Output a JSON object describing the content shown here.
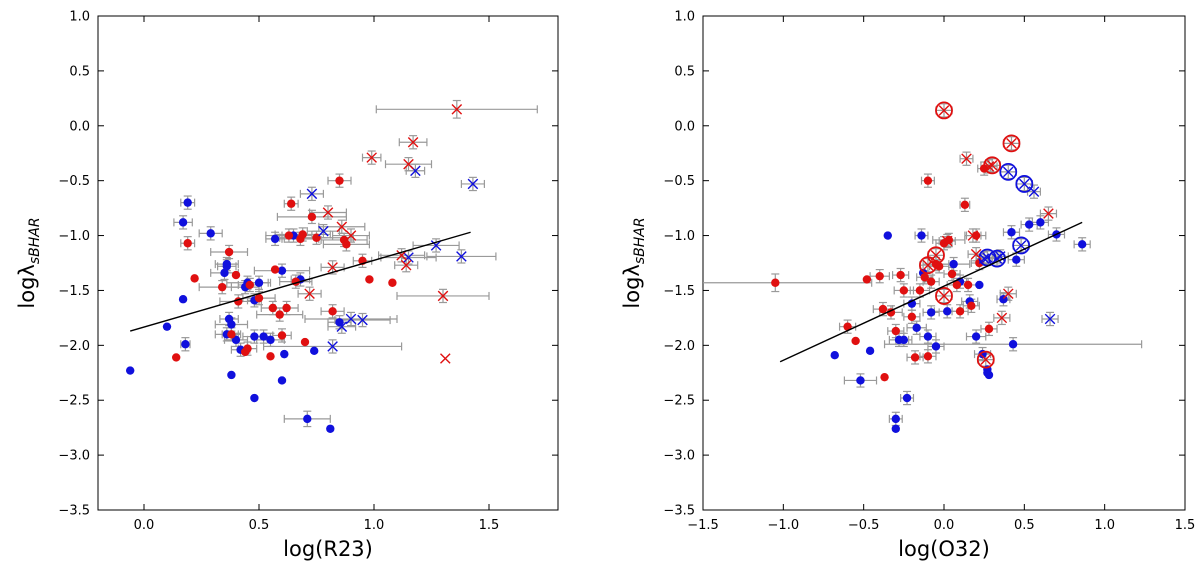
{
  "colors": {
    "blue": "#1010dd",
    "red": "#e01010",
    "errorbar": "#9a9a9a",
    "fit": "#000000"
  },
  "chart_data": [
    {
      "type": "scatter",
      "title": "",
      "xlabel": "log(R23)",
      "ylabel": "logλ",
      "ylabel_sub": "sBHAR",
      "xlim": [
        -0.2,
        1.8
      ],
      "ylim": [
        -3.5,
        1.0
      ],
      "xticks": [
        0.0,
        0.5,
        1.0,
        1.5
      ],
      "xtick_labels": [
        "0.0",
        "0.5",
        "1.0",
        "1.5"
      ],
      "yticks": [
        -3.5,
        -3.0,
        -2.5,
        -2.0,
        -1.5,
        -1.0,
        -0.5,
        0.0,
        0.5,
        1.0
      ],
      "ytick_labels": [
        "−3.5",
        "−3.0",
        "−2.5",
        "−2.0",
        "−1.5",
        "−1.0",
        "−0.5",
        "0.0",
        "0.5",
        "1.0"
      ],
      "fit_line": {
        "x": [
          -0.06,
          1.42
        ],
        "y": [
          -1.87,
          -0.97
        ]
      },
      "series": [
        {
          "name": "blue points",
          "color": "blue",
          "marker": "circle",
          "x": [
            -0.06,
            0.1,
            0.17,
            0.18,
            0.19,
            0.17,
            0.29,
            0.35,
            0.36,
            0.37,
            0.38,
            0.36,
            0.4,
            0.42,
            0.44,
            0.45,
            0.48,
            0.48,
            0.5,
            0.52,
            0.55,
            0.57,
            0.6,
            0.61,
            0.65,
            0.68,
            0.71,
            0.74,
            0.6,
            0.81,
            0.85,
            0.38,
            0.36,
            0.48
          ],
          "y": [
            -2.23,
            -1.83,
            -1.58,
            -1.99,
            -0.7,
            -0.88,
            -0.98,
            -1.34,
            -1.26,
            -1.76,
            -1.81,
            -1.28,
            -1.95,
            -2.04,
            -1.47,
            -1.43,
            -1.92,
            -1.59,
            -1.43,
            -1.92,
            -1.95,
            -1.03,
            -2.32,
            -2.08,
            -1.0,
            -1.4,
            -2.67,
            -2.05,
            -1.32,
            -2.76,
            -1.79,
            -2.27,
            -1.9,
            -2.48
          ],
          "xerr": [
            0,
            0,
            0,
            0.02,
            0.03,
            0.04,
            0.05,
            0.06,
            0.05,
            0.04,
            0.07,
            0.04,
            0.05,
            0.04,
            0.06,
            0.09,
            0.05,
            0.03,
            0.05,
            0.04,
            0.06,
            0.04,
            0,
            0,
            0.05,
            0.04,
            0.1,
            0,
            0.12,
            0,
            0.05,
            0,
            0.05,
            0
          ],
          "yerr": [
            0,
            0,
            0,
            0.06,
            0.06,
            0.06,
            0.06,
            0.06,
            0.06,
            0.06,
            0.06,
            0.06,
            0.06,
            0.06,
            0.06,
            0.06,
            0.06,
            0.06,
            0.06,
            0.06,
            0.06,
            0.06,
            0,
            0,
            0.06,
            0.06,
            0.07,
            0,
            0.06,
            0,
            0.06,
            0,
            0.06,
            0
          ]
        },
        {
          "name": "red points",
          "color": "red",
          "marker": "circle",
          "x": [
            0.14,
            0.19,
            0.22,
            0.34,
            0.38,
            0.4,
            0.41,
            0.45,
            0.44,
            0.46,
            0.5,
            0.55,
            0.56,
            0.57,
            0.6,
            0.62,
            0.63,
            0.64,
            0.66,
            0.68,
            0.7,
            0.69,
            0.75,
            0.82,
            0.85,
            0.87,
            0.88,
            0.95,
            0.98,
            1.08,
            0.37,
            0.59,
            0.73
          ],
          "y": [
            -2.11,
            -1.07,
            -1.39,
            -1.47,
            -1.9,
            -1.36,
            -1.6,
            -2.03,
            -2.06,
            -1.45,
            -1.57,
            -2.1,
            -1.66,
            -1.31,
            -1.91,
            -1.66,
            -1.0,
            -0.71,
            -1.42,
            -1.03,
            -1.97,
            -0.99,
            -1.02,
            -1.69,
            -0.5,
            -1.04,
            -1.08,
            -1.23,
            -1.4,
            -1.43,
            -1.15,
            -1.72,
            -0.83
          ],
          "xerr": [
            0,
            0.03,
            0,
            0.1,
            0.04,
            0,
            0.08,
            0.04,
            0,
            0.05,
            0.07,
            0,
            0.05,
            0,
            0.04,
            0.05,
            0.1,
            0.03,
            0.07,
            0.08,
            0,
            0.12,
            0.16,
            0.05,
            0.05,
            0.1,
            0.1,
            0.04,
            0,
            0,
            0.08,
            0.1,
            0.15
          ],
          "yerr": [
            0,
            0.06,
            0,
            0.06,
            0.06,
            0,
            0.06,
            0.06,
            0,
            0.06,
            0.06,
            0,
            0.06,
            0,
            0.06,
            0.06,
            0.06,
            0.06,
            0.06,
            0.06,
            0,
            0.06,
            0.06,
            0.06,
            0.06,
            0.06,
            0.06,
            0.06,
            0,
            0,
            0.06,
            0.06,
            0.06
          ]
        },
        {
          "name": "blue crosses",
          "color": "blue",
          "marker": "x",
          "x": [
            0.73,
            0.78,
            0.82,
            0.86,
            0.9,
            0.95,
            1.15,
            1.18,
            1.27,
            1.43,
            1.38
          ],
          "y": [
            -0.62,
            -0.96,
            -2.01,
            -1.83,
            -1.76,
            -1.77,
            -1.2,
            -0.41,
            -1.09,
            -0.53,
            -1.19
          ],
          "xerr": [
            0.05,
            0.07,
            0.3,
            0.06,
            0.2,
            0.12,
            0.12,
            0.04,
            0.1,
            0.05,
            0.15
          ],
          "yerr": [
            0.06,
            0.06,
            0.06,
            0.06,
            0.06,
            0.06,
            0.06,
            0.06,
            0.06,
            0.06,
            0.06
          ]
        },
        {
          "name": "red crosses",
          "color": "red",
          "marker": "x",
          "x": [
            0.72,
            0.8,
            0.82,
            0.86,
            0.9,
            0.99,
            1.12,
            1.14,
            1.15,
            1.17,
            1.3,
            1.36,
            1.31
          ],
          "y": [
            -1.53,
            -0.79,
            -1.29,
            -0.92,
            -1.0,
            -0.29,
            -1.18,
            -1.27,
            -0.35,
            -0.15,
            -1.55,
            0.15,
            -2.12
          ],
          "xerr": [
            0.05,
            0.08,
            0.05,
            0.1,
            0.08,
            0.04,
            0.1,
            0.05,
            0.1,
            0.06,
            0.2,
            0.35,
            0
          ],
          "yerr": [
            0.06,
            0.06,
            0.06,
            0.06,
            0.06,
            0.06,
            0.06,
            0.06,
            0.06,
            0.06,
            0.06,
            0.08,
            0
          ]
        }
      ]
    },
    {
      "type": "scatter",
      "title": "",
      "xlabel": "log(O32)",
      "ylabel": "logλ",
      "ylabel_sub": "sBHAR",
      "xlim": [
        -1.5,
        1.5
      ],
      "ylim": [
        -3.5,
        1.0
      ],
      "xticks": [
        -1.5,
        -1.0,
        -0.5,
        0.0,
        0.5,
        1.0,
        1.5
      ],
      "xtick_labels": [
        "−1.5",
        "−1.0",
        "−0.5",
        "0.0",
        "0.5",
        "1.0",
        "1.5"
      ],
      "yticks": [
        -3.5,
        -3.0,
        -2.5,
        -2.0,
        -1.5,
        -1.0,
        -0.5,
        0.0,
        0.5,
        1.0
      ],
      "ytick_labels": [
        "−3.5",
        "−3.0",
        "−2.5",
        "−2.0",
        "−1.5",
        "−1.0",
        "−0.5",
        "0.0",
        "0.5",
        "1.0"
      ],
      "fit_line": {
        "x": [
          -1.02,
          0.86
        ],
        "y": [
          -2.15,
          -0.88
        ]
      },
      "series": [
        {
          "name": "blue points",
          "color": "blue",
          "marker": "circle",
          "x": [
            -0.68,
            -0.52,
            -0.46,
            -0.35,
            -0.3,
            -0.28,
            -0.25,
            -0.23,
            -0.2,
            -0.17,
            -0.14,
            -0.13,
            -0.1,
            -0.08,
            -0.05,
            0.02,
            0.06,
            0.1,
            0.16,
            0.2,
            0.22,
            0.24,
            0.27,
            0.28,
            0.37,
            0.42,
            0.43,
            0.45,
            0.53,
            0.6,
            0.7,
            0.86,
            0.27,
            -0.3
          ],
          "y": [
            -2.09,
            -2.32,
            -2.05,
            -1.0,
            -2.67,
            -1.95,
            -1.95,
            -2.48,
            -1.62,
            -1.84,
            -1.0,
            -1.34,
            -1.92,
            -1.7,
            -2.01,
            -1.69,
            -1.26,
            -1.42,
            -1.6,
            -1.92,
            -1.45,
            -2.08,
            -2.22,
            -2.27,
            -1.58,
            -0.97,
            -1.99,
            -1.22,
            -0.9,
            -0.88,
            -0.99,
            -1.08,
            -2.25,
            -2.76
          ],
          "xerr": [
            0,
            0.1,
            0,
            0,
            0.04,
            0.06,
            0.05,
            0.04,
            0.05,
            0.06,
            0.04,
            0,
            0.05,
            0.05,
            0.05,
            0.08,
            0.1,
            0.04,
            0.05,
            0.06,
            0,
            0.05,
            0,
            0,
            0.04,
            0.05,
            0.8,
            0.05,
            0.05,
            0.05,
            0.05,
            0.05,
            0,
            0
          ],
          "yerr": [
            0,
            0.06,
            0,
            0,
            0.06,
            0.06,
            0.06,
            0.06,
            0.06,
            0.06,
            0.06,
            0,
            0.06,
            0.06,
            0.06,
            0.06,
            0.06,
            0.06,
            0.06,
            0.06,
            0,
            0.06,
            0,
            0,
            0.06,
            0.06,
            0.06,
            0.06,
            0.06,
            0.06,
            0.06,
            0.06,
            0,
            0
          ]
        },
        {
          "name": "red points",
          "color": "red",
          "marker": "circle",
          "x": [
            -1.05,
            -0.6,
            -0.55,
            -0.48,
            -0.4,
            -0.37,
            -0.33,
            -0.3,
            -0.27,
            -0.25,
            -0.2,
            -0.18,
            -0.15,
            -0.12,
            -0.1,
            -0.08,
            -0.05,
            -0.03,
            0.0,
            0.03,
            0.05,
            0.08,
            0.1,
            0.13,
            0.17,
            0.2,
            0.22,
            0.25,
            0.28,
            -0.38,
            -0.1,
            0.15
          ],
          "y": [
            -1.43,
            -1.83,
            -1.96,
            -1.4,
            -1.37,
            -2.29,
            -1.7,
            -1.87,
            -1.36,
            -1.5,
            -1.74,
            -2.11,
            -1.5,
            -1.38,
            -0.5,
            -1.42,
            -1.26,
            -1.28,
            -1.07,
            -1.04,
            -1.35,
            -1.45,
            -1.69,
            -0.72,
            -1.64,
            -1.0,
            -1.25,
            -0.39,
            -1.85,
            -1.67,
            -2.1,
            -1.45
          ],
          "xerr": [
            0.6,
            0.05,
            0,
            0,
            0.06,
            0,
            0.07,
            0.05,
            0.05,
            0.06,
            0.05,
            0.05,
            0.06,
            0.05,
            0.04,
            0.05,
            0.08,
            0.06,
            0.05,
            0.1,
            0.05,
            0.06,
            0.05,
            0.03,
            0.05,
            0.06,
            0.05,
            0.04,
            0.05,
            0.06,
            0.05,
            0.06
          ],
          "yerr": [
            0.08,
            0.06,
            0,
            0,
            0.06,
            0,
            0.06,
            0.06,
            0.06,
            0.06,
            0.06,
            0.06,
            0.06,
            0.06,
            0.06,
            0.06,
            0.06,
            0.06,
            0.06,
            0.06,
            0.06,
            0.06,
            0.06,
            0.06,
            0.06,
            0.06,
            0.06,
            0.06,
            0.06,
            0.06,
            0.06,
            0.06
          ]
        },
        {
          "name": "blue crosses",
          "color": "blue",
          "marker": "x",
          "x": [
            0.4,
            0.5,
            0.27,
            0.33,
            0.48,
            0.56,
            0.66,
            0.25,
            0.35
          ],
          "y": [
            -0.42,
            -0.53,
            -1.2,
            -1.21,
            -1.09,
            -0.6,
            -1.76,
            -1.21,
            -1.19
          ],
          "xerr": [
            0.05,
            0.05,
            0.05,
            0.05,
            0.05,
            0.04,
            0.05,
            0.05,
            0.05
          ],
          "yerr": [
            0.06,
            0.06,
            0.06,
            0.06,
            0.06,
            0.06,
            0.06,
            0.06,
            0.06
          ],
          "circled": [
            true,
            true,
            true,
            true,
            true,
            false,
            false,
            false,
            false
          ]
        },
        {
          "name": "red crosses",
          "color": "red",
          "marker": "x",
          "x": [
            0.0,
            0.42,
            0.3,
            0.28,
            0.0,
            -0.05,
            -0.1,
            0.26,
            0.4,
            0.65,
            0.36,
            0.18,
            0.02,
            0.14,
            0.2
          ],
          "y": [
            0.14,
            -0.16,
            -0.36,
            -0.37,
            -1.55,
            -1.18,
            -1.27,
            -2.13,
            -1.53,
            -0.8,
            -1.75,
            -1.0,
            -1.05,
            -0.3,
            -1.17
          ],
          "xerr": [
            0.05,
            0.05,
            0.05,
            0.05,
            0.05,
            0.05,
            0.05,
            0.05,
            0.05,
            0.05,
            0.05,
            0.05,
            0.05,
            0.04,
            0.05
          ],
          "yerr": [
            0.06,
            0.06,
            0.06,
            0.06,
            0.06,
            0.06,
            0.06,
            0.06,
            0.06,
            0.06,
            0.06,
            0.06,
            0.06,
            0.06,
            0.06
          ],
          "circled": [
            true,
            true,
            true,
            false,
            true,
            true,
            true,
            true,
            false,
            false,
            false,
            false,
            false,
            false,
            false
          ]
        }
      ]
    }
  ]
}
